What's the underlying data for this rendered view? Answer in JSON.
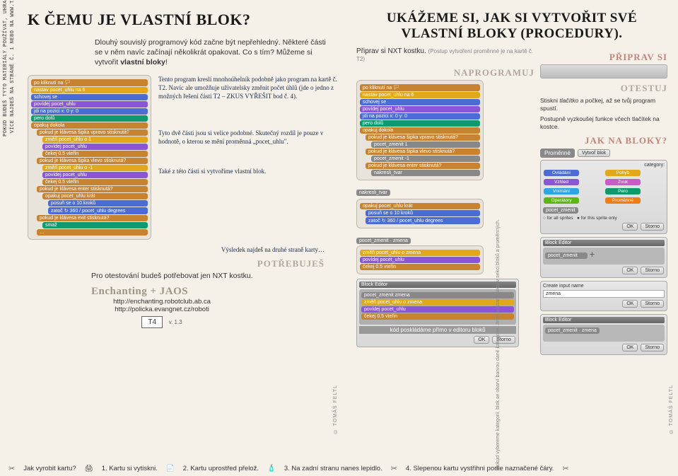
{
  "left_margin": {
    "line1": "POKUD BUDEŠ TYTO MATERIÁLY POUŽÍVAT, UHRAĎ PROSÍM ČÁSTKU 89 KČ.",
    "line2": "VÍCE NAJDEŠ NA STRANĚ Č. 1 NEBO NA WWW.TFSOFT.CZ/LEGO_MINDSTORMS."
  },
  "left": {
    "title": "K ČEMU JE VLASTNÍ BLOK?",
    "intro_1": "Dlouhý souvislý programový kód začne být nepřehledný. Některé části se v něm navíc začínají několikrát opakovat. Co s tím? Můžeme si vytvořit ",
    "intro_bold": "vlastní bloky",
    "intro_2": "!",
    "note1": "Tento program kreslí mnohoúhelník podobně jako program na kartě č. T2. Navíc ale umožňuje uživatelsky změnit počet úhlů (jde o jedno z možných řešení části T2 – ZKUS VYŘEŠIT bod č. 4).",
    "note2": "Tyto dvě části jsou si velice podobné. Skutečný rozdíl je pouze v hodnotě, o kterou se mění proměnná „pocet_uhlu\".",
    "note3": "Také z této části si vytvoříme vlastní blok.",
    "result_note": "Výsledek najdeš na druhé straně karty…",
    "section_need": "POTŘEBUJEŠ",
    "need_text": "Pro otestování budeš potřebovat jen NXT kostku.",
    "enchanting": "Enchanting + JAOS",
    "link1": "http://enchanting.robotclub.ab.ca",
    "link2": "http://policka.evangnet.cz/roboti",
    "card": "T4",
    "version": "v. 1.3"
  },
  "scratch": {
    "hat": "po kliknutí na 🏳",
    "set_var": "nastav pocet_uhlu na 6",
    "hide": "schovej se",
    "say": "povídej pocet_uhlu",
    "goto": "jdi na pozici x: 0 y: 0",
    "pen_down": "pero dolů",
    "forever": "opakuj dokola",
    "if_right": "pokud je klávesa šipka vpravo stisknutá?",
    "change_p1": "změň pocet_uhlu o 1",
    "say2": "povídej pocet_uhlu",
    "wait1": "čekej 0.5 vteřin",
    "if_left": "pokud je klávesa šipka vlevo stisknutá?",
    "change_m1": "změň pocet_uhlu o -1",
    "wait2": "čekej 0.5 vteřin",
    "if_enter": "pokud je klávesa enter stisknutá?",
    "repeat": "opakuj pocet_uhlu krát",
    "move": "posuň se o 10 kroků",
    "turn": "zatoč ↻ 360 / pocet_uhlu degrees",
    "if_exit": "pokud je klávesa exit stisknutá?",
    "clear": "smaž",
    "end": "…"
  },
  "right": {
    "title": "UKÁŽEME SI, JAK SI VYTVOŘIT SVÉ VLASTNÍ BLOKY (PROCEDURY).",
    "prep_intro_1": "Připrav si NXT kostku. ",
    "prep_intro_2": "(Postup vytvoření proměnné je na kartě č. T2)",
    "sec_program": "NAPROGRAMUJ",
    "sec_prep": "PŘIPRAV SI",
    "sec_test": "OTESTUJ",
    "test_1a": "Stiskni ",
    "test_1b": "tlačítko",
    "test_1c": " a počkej, až se tvůj program spustí.",
    "test_2": "Postupně vyzkoušej funkce včech tlačítek na kostce.",
    "sec_blocks": "JAK NA BLOKY?",
    "vars_label": "Proměnné",
    "make_block": "Vytvoř blok",
    "cat_label": "category:",
    "cats": [
      {
        "name": "Ovládání",
        "color": "#4a6cd4"
      },
      {
        "name": "Pohyb",
        "color": "#e1a91a"
      },
      {
        "name": "Vzhled",
        "color": "#8a55d7"
      },
      {
        "name": "Zvuk",
        "color": "#c85cc8"
      },
      {
        "name": "Vnímání",
        "color": "#2ca5e2"
      },
      {
        "name": "Pero",
        "color": "#0e9a6c"
      },
      {
        "name": "Operátory",
        "color": "#5cb712"
      },
      {
        "name": "Proměnné",
        "color": "#ee7d16"
      }
    ],
    "gray_block": "pocet_zmenit",
    "sprite_opt1": "for all sprites",
    "sprite_opt2": "for this sprite only",
    "ok": "OK",
    "cancel": "Storno",
    "block_editor": "Block Editor",
    "block_name1": "pocet_zmenit · zmena",
    "block_name2": "nakresli_tvar",
    "create_input": "Create input name",
    "input_val": "zmena",
    "gray1": "pocet_zmenit zmena",
    "gray2": "změň pocet_uhlu o zmena",
    "gray3": "povídej pocet_uhlu",
    "gray4": "čekej 0.5 vteřin",
    "footnote": "kód poskládáme přímo v editoru bloků",
    "if_right2": "pokud je klávesa šipka vpravo stisknutá?",
    "zm1": "pocet_zmenit 1",
    "if_left2": "pokud je klávesa šipka vlevo stisknutá?",
    "zm_m1": "pocet_zmenit -1",
    "if_enter2": "pokud je klávesa enter stisknutá?",
    "draw": "nakresli_tvar",
    "side_note": "Pokud vybereme kategorii, blok se obarví barvou dané kategorie. Jinak zůstane šedý v sekci bloků a proměnných."
  },
  "credit": "© TOMÁŠ FELTL",
  "bottom": {
    "q": "Jak vyrobit kartu?",
    "s1": "1. Kartu si vytiskni.",
    "s2": "2. Kartu uprostřed přelož.",
    "s3": "3. Na zadní stranu nanes lepidlo.",
    "s4": "4. Slepenou kartu vystřihni podle naznačené čáry."
  }
}
